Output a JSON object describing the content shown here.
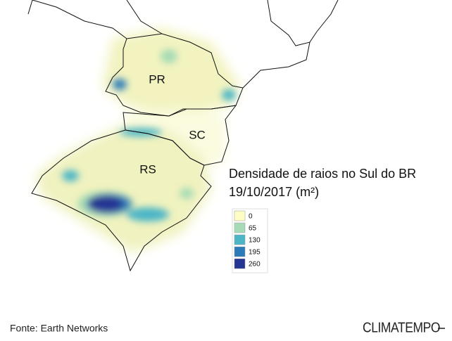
{
  "map": {
    "regions": [
      {
        "label": "PR"
      },
      {
        "label": "SC"
      },
      {
        "label": "RS"
      }
    ],
    "title": "Densidade de raios no Sul do BR",
    "subtitle": "19/10/2017 (m²)",
    "legend": [
      {
        "label": "0",
        "color": "#fdfdc4"
      },
      {
        "label": "65",
        "color": "#a6dbb5"
      },
      {
        "label": "130",
        "color": "#4cb5c6"
      },
      {
        "label": "195",
        "color": "#2b7bb8"
      },
      {
        "label": "260",
        "color": "#253593"
      }
    ],
    "source": "Fonte: Earth Networks",
    "logo": "CLIMATEMPO"
  }
}
